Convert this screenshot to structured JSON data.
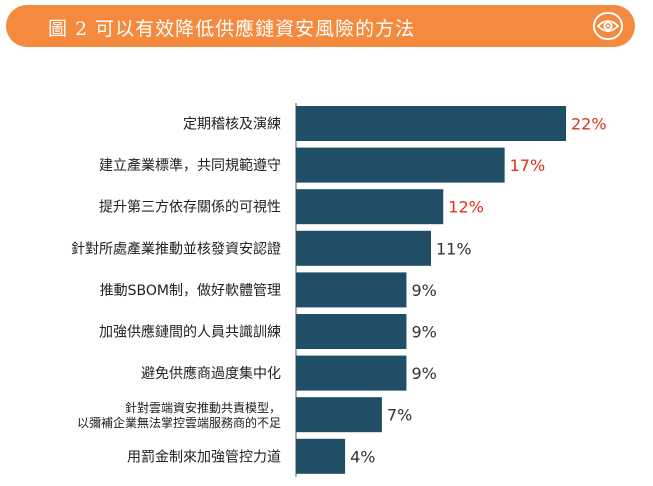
{
  "header": {
    "title": "圖 2 可以有效降低供應鏈資安風險的方法",
    "icon": "eye-icon"
  },
  "colors": {
    "header_bg": "#f58a3f",
    "bar": "#1f4e66",
    "highlight": "#e0301e",
    "value_default": "#333333"
  },
  "chart_data": {
    "type": "bar",
    "orientation": "horizontal",
    "title": "圖 2 可以有效降低供應鏈資安風險的方法",
    "categories": [
      [
        "定期稽核及演練"
      ],
      [
        "建立產業標準，共同規範遵守"
      ],
      [
        "提升第三方依存關係的可視性"
      ],
      [
        "針對所處產業推動並核發資安認證"
      ],
      [
        "推動SBOM制，做好軟體管理"
      ],
      [
        "加強供應鏈間的人員共識訓練"
      ],
      [
        "避免供應商過度集中化"
      ],
      [
        "針對雲端資安推動共責模型，",
        "以彌補企業無法掌控雲端服務商的不足"
      ],
      [
        "用罰金制來加強管控力道"
      ]
    ],
    "values": [
      22,
      17,
      12,
      11,
      9,
      9,
      9,
      7,
      4
    ],
    "value_labels": [
      "22%",
      "17%",
      "12%",
      "11%",
      "9%",
      "9%",
      "9%",
      "7%",
      "4%"
    ],
    "highlighted": [
      true,
      true,
      true,
      false,
      false,
      false,
      false,
      false,
      false
    ],
    "unit": "%",
    "xlim": [
      0,
      22
    ]
  }
}
